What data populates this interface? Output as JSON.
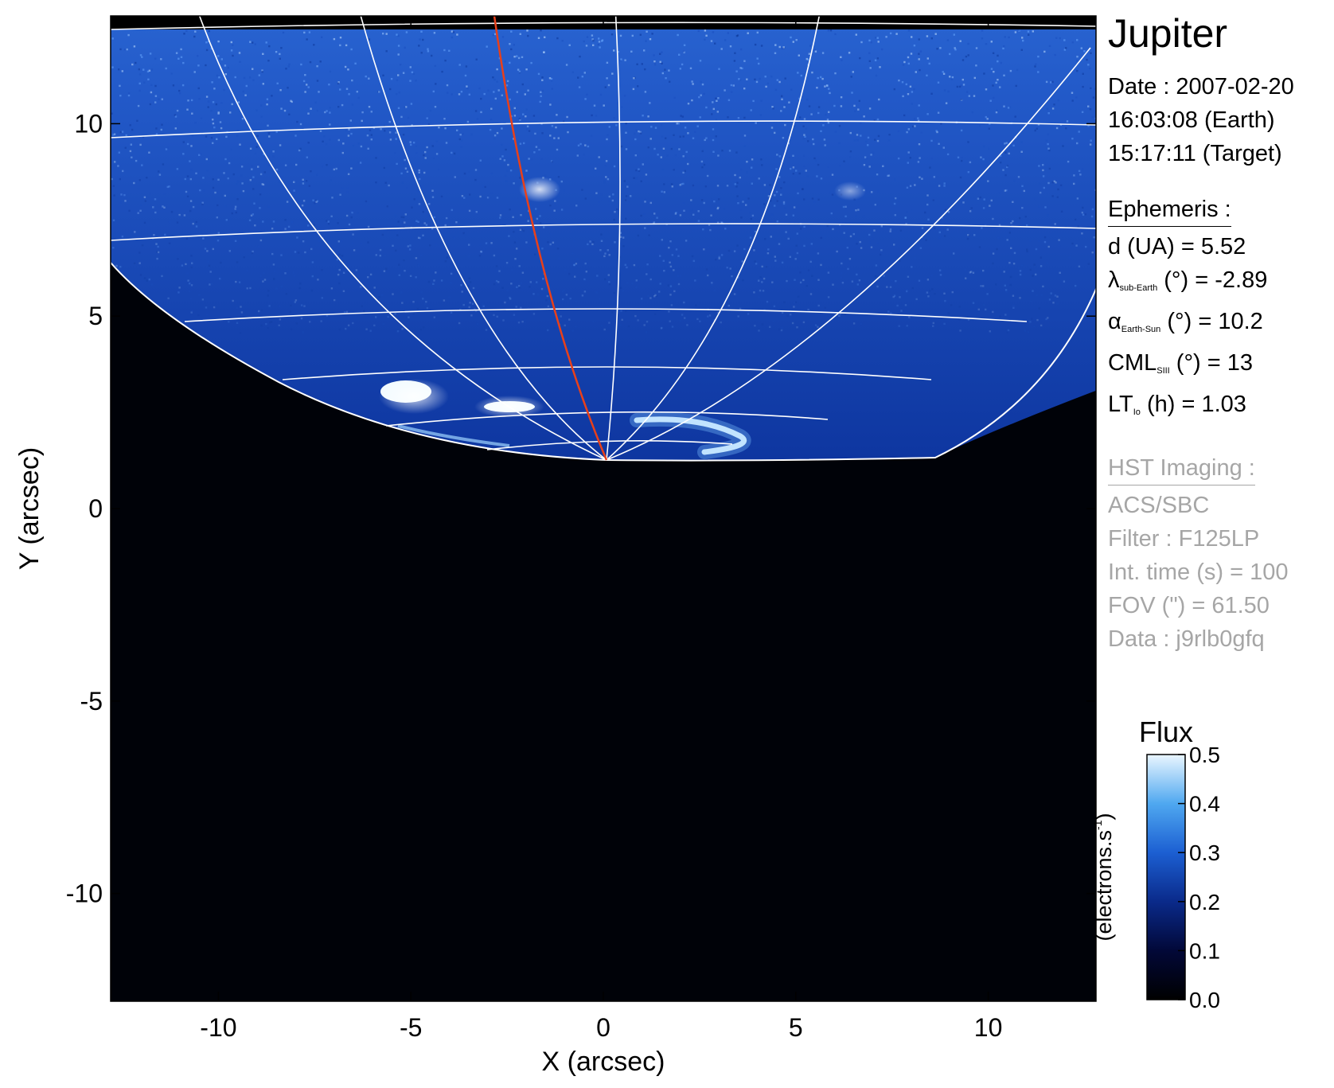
{
  "plot": {
    "x_label": "X (arcsec)",
    "y_label": "Y (arcsec)",
    "x_ticks": [
      "-10",
      "-5",
      "0",
      "5",
      "10"
    ],
    "y_ticks": [
      "10",
      "5",
      "0",
      "-5",
      "-10"
    ],
    "x_range": [
      -12.8,
      12.8
    ],
    "y_range": [
      -12.8,
      12.8
    ],
    "colors": {
      "sky": "#000208",
      "disk": "#1f63d6",
      "grid": "#ffffff",
      "footprint": "#e8401a",
      "aurora": "#dff3ff"
    }
  },
  "info": {
    "title": "Jupiter",
    "date": "Date : 2007-02-20",
    "time_earth": "16:03:08 (Earth)",
    "time_target": "15:17:11 (Target)",
    "ephemeris_header": "Ephemeris :",
    "distance": "d (UA)    = 5.52",
    "lat_symbol": "λ",
    "lat_sub": "sub-Earth",
    "lat_value": " (°) = -2.89",
    "phase_symbol": "α",
    "phase_sub": "Earth-Sun",
    "phase_value": " (°) = 10.2",
    "cml_symbol": "CML",
    "cml_sub": "SIII",
    "cml_value": " (°) = 13",
    "lt_symbol": "LT",
    "lt_sub": "Io",
    "lt_value": " (h) = 1.03",
    "hst_header": "HST Imaging :",
    "instrument": "ACS/SBC",
    "filter": "Filter : F125LP",
    "int_time": "Int. time (s) = 100",
    "fov": "FOV (\") = 61.50",
    "data_id": "Data : j9rlb0gfq"
  },
  "colorbar": {
    "title": "Flux",
    "unit": "(electrons.s",
    "unit_sup": "-1",
    "unit_close": ")",
    "ticks": [
      "0.5",
      "0.4",
      "0.3",
      "0.2",
      "0.1",
      "0.0"
    ],
    "range": [
      0.0,
      0.5
    ],
    "stops": [
      "#000000",
      "#020838",
      "#0a2a8a",
      "#1c5fd2",
      "#4fa8f0",
      "#eaf6ff"
    ]
  }
}
